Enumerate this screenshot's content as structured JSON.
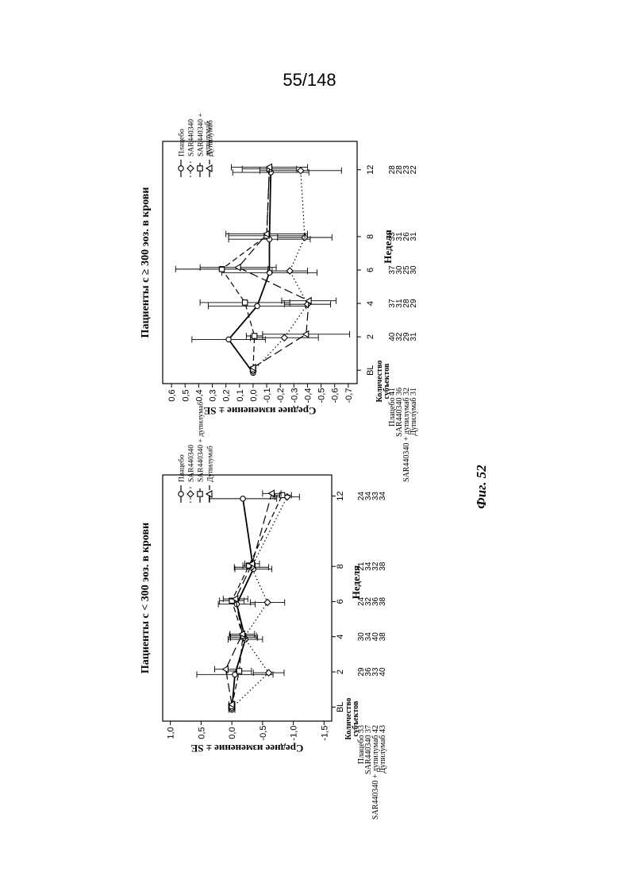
{
  "page_number": "55/148",
  "figure_caption": "Фиг. 52",
  "chart_data": [
    {
      "type": "line",
      "title": "Пациенты с < 300 эоз. в крови",
      "xlabel": "Неделя",
      "ylabel": "Среднее изменение ± SE",
      "x_ticks": [
        "BL",
        "2",
        "4",
        "6",
        "8",
        "12"
      ],
      "x_values": [
        0,
        2,
        4,
        6,
        8,
        12
      ],
      "y_ticks": [
        "1,0",
        "0,5",
        "0,0",
        "-0,5",
        "-1,0",
        "-1,5"
      ],
      "y_tick_values": [
        1.0,
        0.5,
        0.0,
        -0.5,
        -1.0,
        -1.5
      ],
      "ylim": [
        -1.5,
        1.0
      ],
      "series": [
        {
          "name": "Плацебо",
          "marker": "circle",
          "dash": "solid",
          "values": [
            0,
            -0.05,
            -0.22,
            -0.08,
            -0.35,
            -0.18
          ],
          "se": [
            0.05,
            0.62,
            0.28,
            0.3,
            0.3,
            0.55
          ]
        },
        {
          "name": "SAR440340",
          "marker": "diamond",
          "dash": "dotted",
          "values": [
            0,
            -0.6,
            -0.2,
            -0.58,
            -0.32,
            -0.9
          ],
          "se": [
            0.05,
            0.25,
            0.22,
            0.28,
            0.28,
            0.2
          ]
        },
        {
          "name": "SAR440340 + дупилумаб",
          "marker": "square",
          "dash": "dashed",
          "values": [
            0,
            -0.12,
            -0.18,
            0.0,
            -0.28,
            -0.82
          ],
          "se": [
            0.05,
            0.2,
            0.22,
            0.2,
            0.1,
            0.15
          ]
        },
        {
          "name": "Дупилумаб",
          "marker": "triangle",
          "dash": "longdash",
          "values": [
            0,
            0.1,
            -0.17,
            -0.06,
            -0.33,
            -0.65
          ],
          "se": [
            0.05,
            0.18,
            0.2,
            0.2,
            0.12,
            0.15
          ]
        }
      ],
      "legend_position": "top-right",
      "subjects_header": [
        "Количество",
        "субъектов"
      ],
      "subjects_rows": [
        {
          "label": "Плацебо 33",
          "counts": [
            "29",
            "30",
            "24",
            "21",
            "24"
          ]
        },
        {
          "label": "SAR440340 37",
          "counts": [
            "36",
            "34",
            "32",
            "34",
            "34"
          ]
        },
        {
          "label": "SAR440340 + дупилумаб 42",
          "counts": [
            "33",
            "40",
            "36",
            "32",
            "33"
          ]
        },
        {
          "label": "Дупилумаб 43",
          "counts": [
            "40",
            "38",
            "38",
            "38",
            "34"
          ]
        }
      ]
    },
    {
      "type": "line",
      "title": "Пациенты с ≥ 300 эоз. в крови",
      "xlabel": "Неделя",
      "ylabel": "Среднее изменение ± SE",
      "x_ticks": [
        "BL",
        "2",
        "4",
        "6",
        "8",
        "12"
      ],
      "x_values": [
        0,
        2,
        4,
        6,
        8,
        12
      ],
      "y_ticks": [
        "0,6",
        "0,5",
        "0,4",
        "0,3",
        "0,2",
        "0,1",
        "0,0",
        "-0,1",
        "-0,2",
        "-0,3",
        "-0,4",
        "-0,5",
        "-0,6",
        "-0,7"
      ],
      "y_tick_values": [
        0.6,
        0.5,
        0.4,
        0.3,
        0.2,
        0.1,
        0.0,
        -0.1,
        -0.2,
        -0.3,
        -0.4,
        -0.5,
        -0.6,
        -0.7
      ],
      "ylim": [
        -0.7,
        0.6
      ],
      "series": [
        {
          "name": "Плацебо",
          "marker": "circle",
          "dash": "solid",
          "values": [
            0,
            0.18,
            -0.03,
            -0.12,
            -0.12,
            -0.13
          ],
          "se": [
            0.01,
            0.27,
            0.36,
            0.35,
            0.3,
            0.28
          ]
        },
        {
          "name": "SAR440340",
          "marker": "diamond",
          "dash": "dotted",
          "values": [
            0,
            -0.23,
            -0.4,
            -0.27,
            -0.38,
            -0.35
          ],
          "se": [
            0.01,
            0.25,
            0.17,
            0.13,
            0.2,
            0.3
          ]
        },
        {
          "name": "SAR440340 +\nдупилумаб",
          "marker": "square",
          "dash": "dashed",
          "values": [
            0,
            -0.01,
            0.06,
            0.23,
            -0.1,
            -0.12
          ],
          "se": [
            0.01,
            0.06,
            0.33,
            0.34,
            0.28,
            0.2
          ]
        },
        {
          "name": "Дупилумаб",
          "marker": "triangle",
          "dash": "longdash",
          "values": [
            0,
            -0.39,
            -0.41,
            0.11,
            -0.1,
            -0.12
          ],
          "se": [
            0.01,
            0.32,
            0.2,
            0.28,
            0.3,
            0.28
          ]
        }
      ],
      "legend_position": "top-right",
      "subjects_header": [
        "Количество",
        "субъектов"
      ],
      "subjects_rows": [
        {
          "label": "Плацебо 41",
          "counts": [
            "40",
            "37",
            "37",
            "33",
            "28"
          ]
        },
        {
          "label": "SAR440340 36",
          "counts": [
            "32",
            "31",
            "30",
            "31",
            "28"
          ]
        },
        {
          "label": "SAR440340 + дупилумаб 32",
          "counts": [
            "29",
            "28",
            "25",
            "26",
            "23"
          ]
        },
        {
          "label": "Дупилумаб 31",
          "counts": [
            "31",
            "29",
            "30",
            "31",
            "22"
          ]
        }
      ]
    }
  ]
}
